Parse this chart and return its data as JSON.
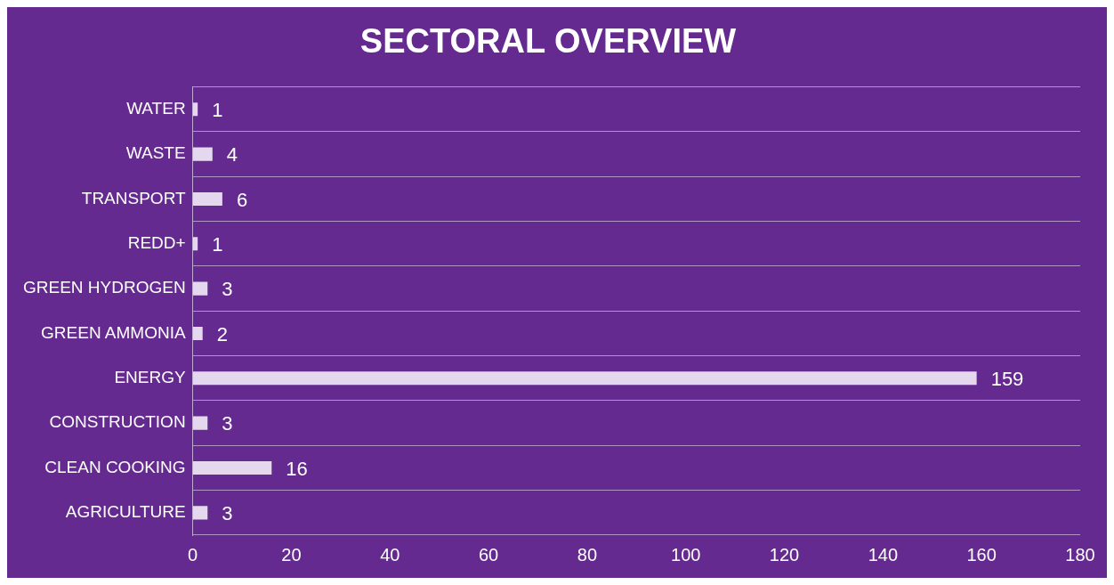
{
  "chart_data": {
    "type": "bar",
    "title": "SECTORAL OVERVIEW",
    "orientation": "horizontal",
    "categories": [
      "WATER",
      "WASTE",
      "TRANSPORT",
      "REDD+",
      "GREEN HYDROGEN",
      "GREEN AMMONIA",
      "ENERGY",
      "CONSTRUCTION",
      "CLEAN COOKING",
      "AGRICULTURE"
    ],
    "values": [
      1,
      4,
      6,
      1,
      3,
      2,
      159,
      3,
      16,
      3
    ],
    "color": "#e4d8ef",
    "xlim": [
      0,
      180
    ],
    "xticks": [
      0,
      20,
      40,
      60,
      80,
      100,
      120,
      140,
      160,
      180
    ],
    "grid": "y",
    "legend": false,
    "data_labels": true
  }
}
